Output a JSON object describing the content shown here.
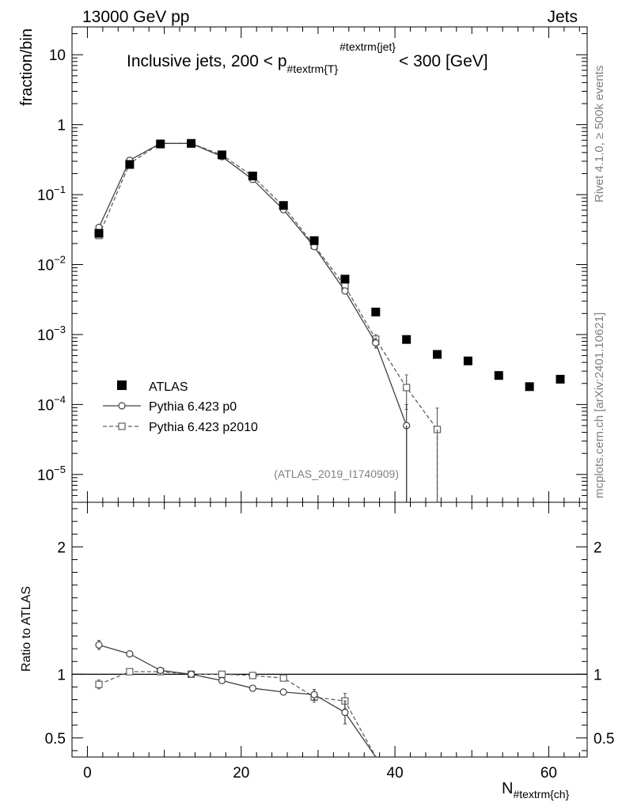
{
  "header": {
    "left": "13000 GeV pp",
    "right": "Jets"
  },
  "chart_data": [
    {
      "type": "line",
      "panel": "main",
      "title_main": "Inclusive jets, 200 < p",
      "title_sub": "#textrm{T}",
      "title_sup": "#textrm{jet}",
      "title_tail": "< 300 [GeV]",
      "ylabel": "fraction/bin",
      "yscale": "log",
      "ylim": [
        4e-06,
        25
      ],
      "xlim": [
        -2,
        65
      ],
      "ytick_labels": [
        "10",
        "1",
        "10−1",
        "10−2",
        "10−3",
        "10−4",
        "10−5"
      ],
      "legend_position": "lower-left",
      "analysis_label": "(ATLAS_2019_I1740909)",
      "series": [
        {
          "name": "ATLAS",
          "marker": "filled-square",
          "x": [
            1.5,
            5.5,
            9.5,
            13.5,
            17.5,
            21.5,
            25.5,
            29.5,
            33.5,
            37.5,
            41.5,
            45.5,
            49.5,
            53.5,
            57.5,
            61.5
          ],
          "values": [
            0.028,
            0.27,
            0.53,
            0.54,
            0.37,
            0.185,
            0.07,
            0.022,
            0.0062,
            0.0021,
            0.00085,
            0.00052,
            0.00042,
            0.00026,
            0.00018,
            0.00023
          ]
        },
        {
          "name": "Pythia 6.423 p0",
          "marker": "open-circle",
          "line": "solid",
          "x": [
            1.5,
            5.5,
            9.5,
            13.5,
            17.5,
            21.5,
            25.5,
            29.5,
            33.5,
            37.5,
            41.5
          ],
          "values": [
            0.034,
            0.31,
            0.54,
            0.54,
            0.35,
            0.165,
            0.061,
            0.018,
            0.0042,
            0.00076,
            5e-05
          ],
          "err_low": [
            0.001,
            0.005,
            0.006,
            0.006,
            0.005,
            0.003,
            0.001,
            0.0005,
            0.0002,
            0.00012,
            4.9e-05
          ],
          "err_high": [
            0.001,
            0.005,
            0.006,
            0.006,
            0.005,
            0.003,
            0.001,
            0.0005,
            0.0002,
            0.00012,
            5e-05
          ]
        },
        {
          "name": "Pythia 6.423 p2010",
          "marker": "open-square",
          "line": "dashed",
          "x": [
            1.5,
            5.5,
            9.5,
            13.5,
            17.5,
            21.5,
            25.5,
            29.5,
            33.5,
            37.5,
            41.5,
            45.5
          ],
          "values": [
            0.026,
            0.28,
            0.54,
            0.54,
            0.37,
            0.183,
            0.068,
            0.0188,
            0.0049,
            0.00086,
            0.000175,
            4.4e-05
          ],
          "err_low": [
            0.001,
            0.005,
            0.006,
            0.006,
            0.005,
            0.003,
            0.001,
            0.0005,
            0.0002,
            0.00014,
            9e-05,
            4.3e-05
          ],
          "err_high": [
            0.001,
            0.005,
            0.006,
            0.006,
            0.005,
            0.003,
            0.001,
            0.0005,
            0.0002,
            0.00014,
            9e-05,
            4.5e-05
          ]
        }
      ]
    },
    {
      "type": "line",
      "panel": "ratio",
      "ylabel": "Ratio to ATLAS",
      "xlabel_main": "N",
      "xlabel_sub": "#textrm{ch}",
      "ylim": [
        0.35,
        2.35
      ],
      "xlim": [
        -2,
        65
      ],
      "xtick_labels": [
        "0",
        "20",
        "40",
        "60"
      ],
      "ytick_labels": [
        "2",
        "1",
        "0.5"
      ],
      "reference": 1,
      "series": [
        {
          "name": "Pythia 6.423 p0",
          "marker": "open-circle",
          "line": "solid",
          "x": [
            1.5,
            5.5,
            9.5,
            13.5,
            17.5,
            21.5,
            25.5,
            29.5,
            33.5,
            37.5
          ],
          "values": [
            1.23,
            1.16,
            1.03,
            1.0,
            0.95,
            0.89,
            0.86,
            0.84,
            0.7,
            0.35
          ],
          "err": [
            0.035,
            0.015,
            0.012,
            0.012,
            0.012,
            0.012,
            0.02,
            0.04,
            0.09,
            0.0
          ]
        },
        {
          "name": "Pythia 6.423 p2010",
          "marker": "open-square",
          "line": "dashed",
          "x": [
            1.5,
            5.5,
            9.5,
            13.5,
            17.5,
            21.5,
            25.5,
            29.5,
            33.5,
            37.5
          ],
          "values": [
            0.92,
            1.02,
            1.02,
            1.0,
            1.0,
            0.99,
            0.97,
            0.82,
            0.79,
            0.35
          ],
          "err": [
            0.035,
            0.012,
            0.012,
            0.012,
            0.012,
            0.012,
            0.02,
            0.04,
            0.06,
            0.0
          ]
        }
      ]
    }
  ],
  "side_labels": {
    "rivet": "Rivet 4.1.0, ≥ 500k events",
    "mcplots": "mcplots.cern.ch [arXiv:2401.10621]"
  }
}
